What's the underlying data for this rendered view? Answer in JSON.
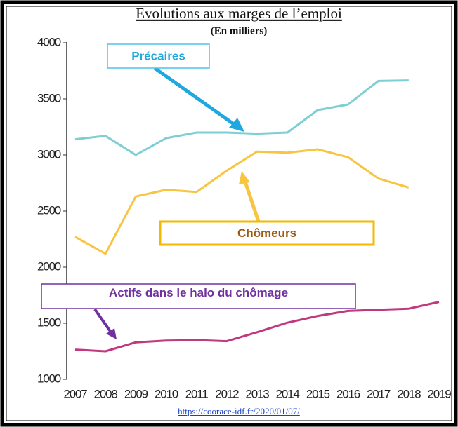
{
  "chart_data": {
    "type": "line",
    "title": "Evolutions aux marges de l’emploi",
    "subtitle": "(En milliers)",
    "source": "https://coorace-idf.fr/2020/01/07/",
    "categories": [
      "2007",
      "2008",
      "2009",
      "2010",
      "2011",
      "2012",
      "2013",
      "2014",
      "2015",
      "2016",
      "2017",
      "2018",
      "2019"
    ],
    "series": [
      {
        "name": "Précaires",
        "color": "#7ecfd4",
        "values": [
          3140,
          3170,
          3000,
          3150,
          3200,
          3200,
          3190,
          3200,
          3400,
          3450,
          3660,
          3665,
          null
        ]
      },
      {
        "name": "Chômeurs",
        "color": "#f9c440",
        "values": [
          2270,
          2120,
          2630,
          2690,
          2670,
          2860,
          3030,
          3020,
          3050,
          2980,
          2790,
          2710,
          null
        ]
      },
      {
        "name": "Actifs dans le halo du chômage",
        "color": "#c0397f",
        "values": [
          1265,
          1250,
          1330,
          1345,
          1350,
          1340,
          1420,
          1505,
          1565,
          1610,
          1620,
          1630,
          1690
        ]
      }
    ],
    "ylim": [
      1000,
      4000
    ],
    "yticks": [
      1000,
      1500,
      2000,
      2500,
      3000,
      3500,
      4000
    ]
  }
}
